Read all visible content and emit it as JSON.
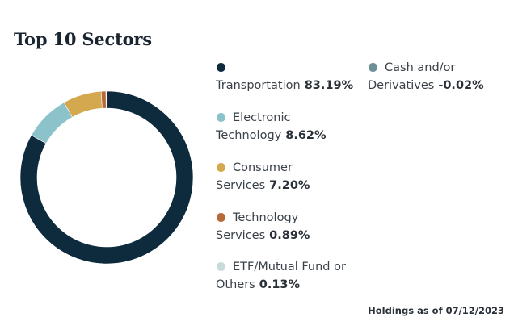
{
  "chart_data": {
    "type": "pie",
    "title": "Top 10 Sectors",
    "slices": [
      {
        "label_line1": "",
        "label_line2": "Transportation",
        "value": 83.19,
        "value_label": "83.19%",
        "color": "#0e2a3d"
      },
      {
        "label_line1": "Electronic",
        "label_line2": "Technology",
        "value": 8.62,
        "value_label": "8.62%",
        "color": "#8cc3cb"
      },
      {
        "label_line1": "Consumer",
        "label_line2": "Services",
        "value": 7.2,
        "value_label": "7.20%",
        "color": "#d3a84e"
      },
      {
        "label_line1": "Technology",
        "label_line2": "Services",
        "value": 0.89,
        "value_label": "0.89%",
        "color": "#b8693a"
      },
      {
        "label_line1": "ETF/Mutual Fund or",
        "label_line2": "Others",
        "value": 0.13,
        "value_label": "0.13%",
        "color": "#c9dbd8"
      },
      {
        "label_line1": "Cash and/or",
        "label_line2": "Derivatives",
        "value": -0.02,
        "value_label": "-0.02%",
        "color": "#6e8f95"
      }
    ],
    "footer": "Holdings as of 07/12/2023"
  }
}
